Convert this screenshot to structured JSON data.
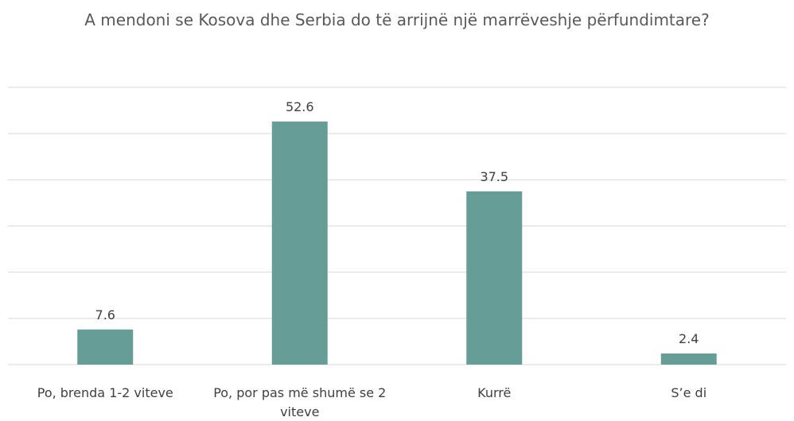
{
  "chart_data": {
    "type": "bar",
    "title": "A mendoni se Kosova dhe Serbia do të arrijnë një marrëveshje përfundimtare?",
    "categories": [
      "Po,  brenda 1-2 viteve",
      "Po, por pas më shumë se 2 viteve",
      "Kurrë",
      "S’e di"
    ],
    "values": [
      7.6,
      52.6,
      37.5,
      2.4
    ],
    "color": "#669e97",
    "ylim": [
      0,
      60
    ],
    "yticks": [
      0,
      10,
      20,
      30,
      40,
      50,
      60
    ],
    "grid": true
  }
}
